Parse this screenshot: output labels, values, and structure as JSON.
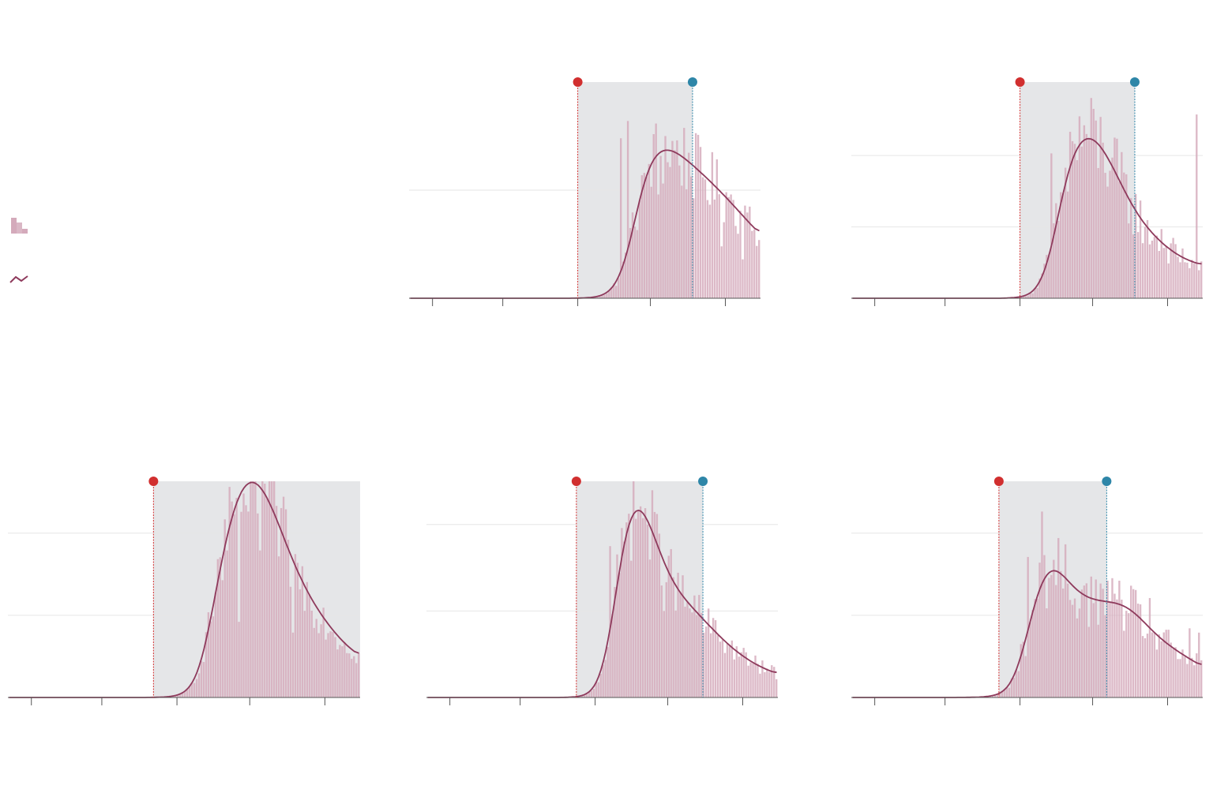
{
  "colors": {
    "bar": "#d4aabb",
    "bar_stroke": "#c595a8",
    "line": "#8e3a5c",
    "shade": "#e5e6e8",
    "grid": "#e6e6e6",
    "axis": "#555555",
    "start_marker": "#d12f2f",
    "end_marker": "#2e86a8"
  },
  "legend": {
    "bar_icon": "histogram-icon",
    "line_icon": "trend-line-icon"
  },
  "chart_data": [
    {
      "type": "bar",
      "panel": "top-center",
      "x_range": [
        0,
        150
      ],
      "y_max": 100,
      "gridlines": [
        50
      ],
      "ticks": [
        10,
        40,
        72,
        103,
        135
      ],
      "shade_start": 72,
      "shade_end": 121,
      "start_day": 70,
      "rise_center": 95,
      "peaks": [
        {
          "at": 100,
          "height": 46,
          "width": 22
        },
        {
          "at": 128,
          "height": 30,
          "width": 25
        }
      ],
      "tail_level": 15,
      "noise": 0.28,
      "spikes": [
        [
          90,
          74
        ],
        [
          93,
          82
        ],
        [
          100,
          58
        ],
        [
          106,
          48
        ],
        [
          133,
          24
        ],
        [
          137,
          48
        ],
        [
          142,
          18
        ]
      ]
    },
    {
      "type": "bar",
      "panel": "top-right",
      "x_range": [
        0,
        150
      ],
      "y_max": 100,
      "gridlines": [
        33,
        66
      ],
      "ticks": [
        10,
        40,
        72,
        103,
        135
      ],
      "shade_start": 72,
      "shade_end": 121,
      "start_day": 66,
      "rise_center": 85,
      "peaks": [
        {
          "at": 92,
          "height": 38,
          "width": 14
        },
        {
          "at": 105,
          "height": 30,
          "width": 14
        },
        {
          "at": 118,
          "height": 18,
          "width": 20
        }
      ],
      "tail_level": 14,
      "noise": 0.32,
      "spikes": [
        [
          85,
          67
        ],
        [
          93,
          77
        ],
        [
          99,
          80
        ],
        [
          108,
          58
        ],
        [
          125,
          33
        ],
        [
          147,
          85
        ],
        [
          132,
          32
        ]
      ]
    },
    {
      "type": "bar",
      "panel": "bottom-left",
      "x_range": [
        0,
        150
      ],
      "y_max": 100,
      "gridlines": [
        38,
        76
      ],
      "ticks": [
        10,
        40,
        72,
        103,
        135
      ],
      "shade_start": 62,
      "shade_end": 150,
      "start_day": 60,
      "rise_center": 83,
      "peaks": [
        {
          "at": 96,
          "height": 50,
          "width": 16
        },
        {
          "at": 108,
          "height": 42,
          "width": 16
        },
        {
          "at": 125,
          "height": 24,
          "width": 20
        }
      ],
      "tail_level": 14,
      "noise": 0.26,
      "spikes": [
        [
          89,
          64
        ],
        [
          93,
          68
        ],
        [
          102,
          86
        ],
        [
          107,
          68
        ],
        [
          98,
          35
        ],
        [
          121,
          30
        ]
      ]
    },
    {
      "type": "bar",
      "panel": "bottom-center",
      "x_range": [
        0,
        150
      ],
      "y_max": 100,
      "gridlines": [
        40,
        80
      ],
      "ticks": [
        10,
        40,
        72,
        103,
        135
      ],
      "shade_start": 64,
      "shade_end": 118,
      "start_day": 58,
      "rise_center": 78,
      "peaks": [
        {
          "at": 86,
          "height": 70,
          "width": 14
        },
        {
          "at": 104,
          "height": 30,
          "width": 20
        },
        {
          "at": 125,
          "height": 10,
          "width": 22
        }
      ],
      "tail_level": 8,
      "noise": 0.26,
      "spikes": [
        [
          78,
          70
        ],
        [
          86,
          85
        ],
        [
          94,
          80
        ],
        [
          101,
          40
        ],
        [
          110,
          42
        ],
        [
          118,
          30
        ]
      ]
    },
    {
      "type": "bar",
      "panel": "bottom-right",
      "x_range": [
        0,
        150
      ],
      "y_max": 100,
      "gridlines": [
        38,
        76
      ],
      "ticks": [
        10,
        40,
        72,
        103,
        135
      ],
      "shade_start": 63,
      "shade_end": 109,
      "start_day": 40,
      "rise_center": 70,
      "peaks": [
        {
          "at": 82,
          "height": 38,
          "width": 12
        },
        {
          "at": 98,
          "height": 28,
          "width": 16
        },
        {
          "at": 117,
          "height": 22,
          "width": 14
        },
        {
          "at": 135,
          "height": 10,
          "width": 16
        }
      ],
      "tail_level": 10,
      "noise": 0.3,
      "spikes": [
        [
          75,
          65
        ],
        [
          81,
          86
        ],
        [
          87,
          52
        ],
        [
          112,
          48
        ],
        [
          127,
          46
        ],
        [
          144,
          32
        ],
        [
          148,
          30
        ]
      ]
    }
  ]
}
